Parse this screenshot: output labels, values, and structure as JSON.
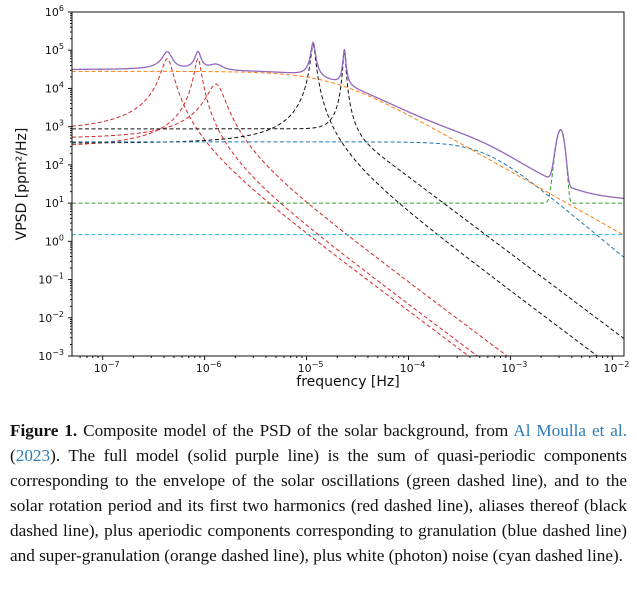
{
  "figure": {
    "chart_data": {
      "type": "line",
      "xscale": "log",
      "yscale": "log",
      "xlabel": "frequency [Hz]",
      "ylabel": "VPSD [ppm²/Hz]",
      "xlim": [
        5e-08,
        0.013
      ],
      "ylim": [
        0.001,
        1000000
      ],
      "x_ticks": [
        1e-07,
        1e-06,
        1e-05,
        0.0001,
        0.001,
        0.01
      ],
      "x_tick_labels": [
        {
          "b": "10",
          "e": "−7"
        },
        {
          "b": "10",
          "e": "−6"
        },
        {
          "b": "10",
          "e": "−5"
        },
        {
          "b": "10",
          "e": "−4"
        },
        {
          "b": "10",
          "e": "−3"
        },
        {
          "b": "10",
          "e": "−2"
        }
      ],
      "y_ticks": [
        0.001,
        0.01,
        0.1,
        1,
        10,
        100,
        1000,
        10000,
        100000,
        1000000
      ],
      "y_tick_labels": [
        {
          "b": "10",
          "e": "−3"
        },
        {
          "b": "10",
          "e": "−2"
        },
        {
          "b": "10",
          "e": "−1"
        },
        {
          "b": "10",
          "e": "0"
        },
        {
          "b": "10",
          "e": "1"
        },
        {
          "b": "10",
          "e": "2"
        },
        {
          "b": "10",
          "e": "3"
        },
        {
          "b": "10",
          "e": "4"
        },
        {
          "b": "10",
          "e": "5"
        },
        {
          "b": "10",
          "e": "6"
        }
      ],
      "legend": "none",
      "grid": false,
      "series": [
        {
          "role": "full model",
          "color": "#9467bd",
          "style": "solid"
        },
        {
          "role": "oscillations envelope",
          "color": "#2ca02c",
          "style": "dashed",
          "params": {
            "H": 10,
            "Ho": 800,
            "fo": 0.0031,
            "g": 0.00022
          }
        },
        {
          "role": "rotation",
          "color": "#d62728",
          "style": "dashed",
          "params": {
            "H": 60000,
            "f0": 4.3e-07,
            "g": 5e-08,
            "lowlimit": 3
          }
        },
        {
          "role": "rotation 1st harmonic",
          "color": "#d62728",
          "style": "dashed",
          "params": {
            "H": 60000,
            "f0": 8.6e-07,
            "g": 6e-08,
            "lowlimit": 10
          }
        },
        {
          "role": "rotation 2nd harmonic",
          "color": "#d62728",
          "style": "dashed",
          "params": {
            "H": 13000,
            "f0": 1.29e-06,
            "g": 2.3e-07,
            "lowlimit": 100
          }
        },
        {
          "role": "alias",
          "color": "#111111",
          "style": "dashed",
          "params": {
            "H": 140000.0,
            "f0": 1.16e-05,
            "g": 5.5e-07,
            "lowlimit": 60
          }
        },
        {
          "role": "alias",
          "color": "#111111",
          "style": "dashed",
          "params": {
            "H": 95000.0,
            "f0": 2.35e-05,
            "g": 6.5e-07,
            "lowlimit": 800
          }
        },
        {
          "role": "granulation",
          "color": "#1f77b4",
          "style": "dashed",
          "params": {
            "A": 400,
            "fc": 0.00055,
            "p": 2.2
          }
        },
        {
          "role": "super-granulation",
          "color": "#ff7f0e",
          "style": "dashed",
          "params": {
            "A": 28000,
            "fc": 1.8e-05,
            "p": 1.5
          }
        },
        {
          "role": "white noise",
          "color": "#17becf",
          "style": "dashed",
          "params": {
            "level": 1.5
          }
        }
      ]
    }
  },
  "caption": {
    "label": "Figure 1.",
    "text_before_cite": " Composite model of the PSD of the solar background, from ",
    "cite_name": "Al Moulla et al.",
    "cite_year_open": " (",
    "cite_year": "2023",
    "cite_year_close": ")",
    "text_after_cite": ". The full model (solid purple line) is the sum of quasi-periodic components corresponding to the envelope of the solar oscillations (green dashed line), and to the solar rotation period and its first two harmonics (red dashed line), aliases thereof (black dashed line), plus aperiodic components corresponding to granulation (blue dashed line) and super-granulation (orange dashed line), plus white (photon) noise (cyan dashed line)."
  }
}
